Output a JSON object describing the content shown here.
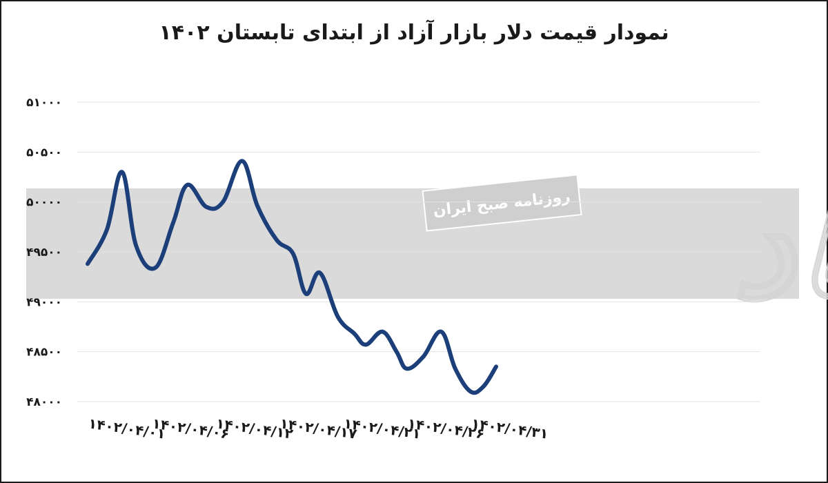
{
  "chart_data": {
    "type": "line",
    "title": "نمودار قیمت دلار بازار آزاد از ابتدای تابستان ۱۴۰۲",
    "xlabel": "",
    "ylabel": "",
    "ylim": [
      48000,
      51000
    ],
    "yticks": [
      "۴۸۰۰۰",
      "۴۸۵۰۰",
      "۴۹۰۰۰",
      "۴۹۵۰۰",
      "۵۰۰۰۰",
      "۵۰۵۰۰",
      "۵۱۰۰۰"
    ],
    "ytick_values": [
      48000,
      48500,
      49000,
      49500,
      50000,
      50500,
      51000
    ],
    "x_tick_labels": [
      "۱۴۰۲/۰۴/۰۱",
      "۱۴۰۲/۰۴/۰۶",
      "۱۴۰۲/۰۴/۱۲",
      "۱۴۰۲/۰۴/۱۷",
      "۱۴۰۲/۰۴/۲۱",
      "۱۴۰۲/۰۴/۲۶",
      "۱۴۰۲/۰۴/۳۱"
    ],
    "x_tick_positions": [
      0,
      5,
      10,
      15,
      20,
      25,
      30
    ],
    "grid": true,
    "legend": "none",
    "line_color": "#1c3f7a",
    "series": [
      {
        "x": [
          0,
          1.5,
          2.7,
          3.8,
          5.3,
          6.7,
          7.8,
          9.3,
          10.6,
          12.1,
          13.3,
          14.8,
          16.1,
          17.1,
          18.2,
          19.6,
          20.9,
          21.8,
          23.1,
          24.2,
          25.0,
          26.3,
          27.7,
          28.8,
          30.0,
          31.0,
          32.0
        ],
        "y": [
          49380,
          49720,
          50300,
          49560,
          49340,
          49790,
          50170,
          49950,
          50000,
          50410,
          49960,
          49620,
          49480,
          49080,
          49290,
          48850,
          48680,
          48570,
          48700,
          48500,
          48330,
          48450,
          48700,
          48330,
          48100,
          48150,
          48350
        ]
      }
    ]
  },
  "watermark": {
    "newspaper_name": "روزنامه صبح ایران",
    "brand_text": "دنیای اقتصاد",
    "band_color": "#dadada"
  }
}
